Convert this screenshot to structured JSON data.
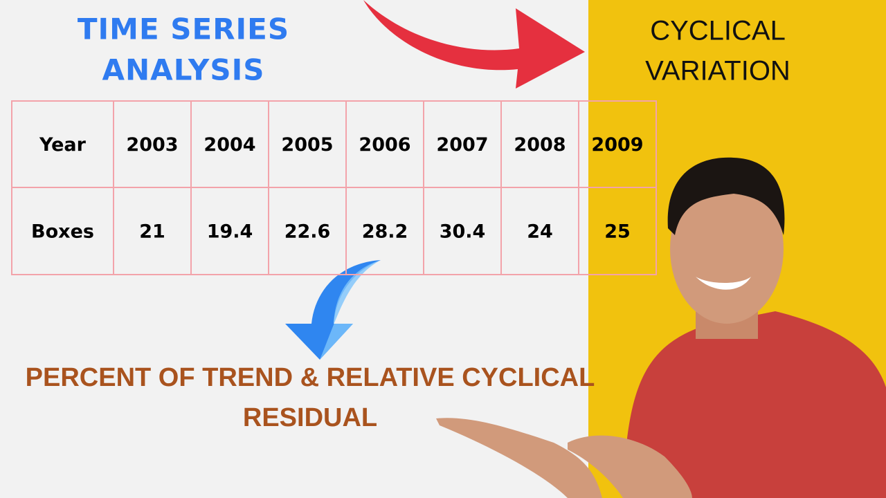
{
  "header": {
    "title_lines": [
      "TIME SERIES",
      "ANALYSIS"
    ]
  },
  "side_panel": {
    "lines": [
      "CYCLICAL",
      "VARIATION"
    ]
  },
  "table": {
    "rows": [
      [
        "Year",
        "2003",
        "2004",
        "2005",
        "2006",
        "2007",
        "2008",
        "2009"
      ],
      [
        "Boxes",
        "21",
        "19.4",
        "22.6",
        "28.2",
        "30.4",
        "24",
        "25"
      ]
    ]
  },
  "footer": {
    "lines": [
      "PERCENT OF TREND & RELATIVE CYCLICAL",
      "RESIDUAL"
    ]
  }
}
